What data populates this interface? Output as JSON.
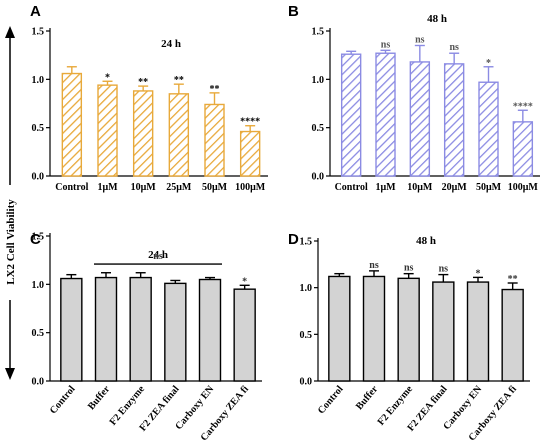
{
  "figure": {
    "ylabel": "LX2 Cell Viability"
  },
  "chart_data": [
    {
      "panel": "A",
      "type": "bar",
      "title": "24 h",
      "categories": [
        "Control",
        "1μM",
        "10μM",
        "25μM",
        "50μM",
        "100μM"
      ],
      "values": [
        1.06,
        0.94,
        0.88,
        0.85,
        0.74,
        0.46
      ],
      "errors": [
        0.07,
        0.04,
        0.05,
        0.1,
        0.12,
        0.06
      ],
      "significance": [
        "",
        "*",
        "**",
        "**",
        "**",
        "****"
      ],
      "ylim": [
        0,
        1.5
      ],
      "yticks": [
        "0.0",
        "0.5",
        "1.0",
        "1.5"
      ],
      "fill": "hatched",
      "color": "#E8A93A"
    },
    {
      "panel": "B",
      "type": "bar",
      "title": "48 h",
      "categories": [
        "Control",
        "1μM",
        "10μM",
        "20μM",
        "50μM",
        "100μM"
      ],
      "values": [
        1.26,
        1.27,
        1.18,
        1.16,
        0.97,
        0.56
      ],
      "errors": [
        0.03,
        0.03,
        0.17,
        0.11,
        0.16,
        0.12
      ],
      "significance": [
        "",
        "ns",
        "ns",
        "ns",
        "*",
        "****"
      ],
      "ylim": [
        0,
        1.5
      ],
      "yticks": [
        "0.0",
        "0.5",
        "1.0",
        "1.5"
      ],
      "fill": "hatched",
      "color": "#8B8BE3"
    },
    {
      "panel": "C",
      "type": "bar",
      "title": "24 h",
      "categories": [
        "Control",
        "Buffer",
        "F2 Enzyme",
        "F2 ZEA final",
        "Carboxy EN",
        "Carboxy ZEA fi"
      ],
      "values": [
        1.06,
        1.07,
        1.07,
        1.01,
        1.05,
        0.95
      ],
      "errors": [
        0.04,
        0.05,
        0.05,
        0.03,
        0.02,
        0.04
      ],
      "significance": [
        "",
        "",
        "",
        "",
        "",
        "*"
      ],
      "bracket": {
        "label": "ns",
        "from": 1,
        "to": 4
      },
      "ylim": [
        0,
        1.5
      ],
      "yticks": [
        "0.0",
        "0.5",
        "1.0",
        "1.5"
      ],
      "fill": "solid",
      "color": "#D3D3D3"
    },
    {
      "panel": "D",
      "type": "bar",
      "title": "48 h",
      "categories": [
        "Control",
        "Buffer",
        "F2 Enzyme",
        "F2 ZEA final",
        "Carboxy EN",
        "Carboxy ZEA fi"
      ],
      "values": [
        1.12,
        1.12,
        1.1,
        1.06,
        1.06,
        0.98
      ],
      "errors": [
        0.03,
        0.06,
        0.05,
        0.08,
        0.05,
        0.07
      ],
      "significance": [
        "",
        "ns",
        "ns",
        "ns",
        "*",
        "**"
      ],
      "ylim": [
        0,
        1.5
      ],
      "yticks": [
        "0.0",
        "0.5",
        "1.0",
        "1.5"
      ],
      "fill": "solid",
      "color": "#D3D3D3"
    }
  ]
}
